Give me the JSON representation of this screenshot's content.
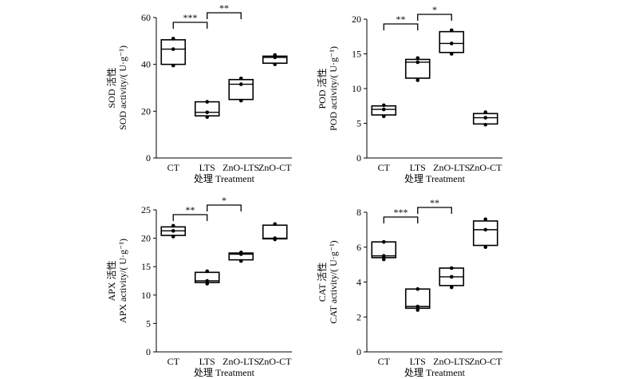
{
  "charts": [
    {
      "type": "boxplot",
      "xlabel": "处理 Treatment",
      "ylabel_cn": "SOD 活性",
      "ylabel_en": "SOD activity/( U·g⁻¹)",
      "categories": [
        "CT",
        "LTS",
        "ZnO-LTS",
        "ZnO-CT"
      ],
      "ylim": [
        0,
        60
      ],
      "yticks": [
        0,
        20,
        40,
        60
      ],
      "boxes": [
        {
          "min": 39.5,
          "q1": 40,
          "median": 46.5,
          "q3": 50.5,
          "max": 51,
          "points": [
            39.5,
            46.5,
            51
          ]
        },
        {
          "min": 17.5,
          "q1": 18,
          "median": 19.5,
          "q3": 24,
          "max": 24,
          "points": [
            17.5,
            19.5,
            24
          ]
        },
        {
          "min": 24.5,
          "q1": 25,
          "median": 31.5,
          "q3": 33.5,
          "max": 34,
          "points": [
            24.5,
            31.5,
            34
          ]
        },
        {
          "min": 40,
          "q1": 40.5,
          "median": 43,
          "q3": 43.5,
          "max": 44,
          "points": [
            40,
            43,
            44
          ]
        }
      ],
      "significance": [
        {
          "from": 0,
          "to": 1,
          "label": "***"
        },
        {
          "from": 1,
          "to": 2,
          "label": "**"
        }
      ]
    },
    {
      "type": "boxplot",
      "xlabel": "处理 Treatment",
      "ylabel_cn": "POD 活性",
      "ylabel_en": "POD activity/( U·g⁻¹)",
      "categories": [
        "CT",
        "LTS",
        "ZnO-LTS",
        "ZnO-CT"
      ],
      "ylim": [
        0,
        20
      ],
      "yticks": [
        0,
        5,
        10,
        15,
        20
      ],
      "boxes": [
        {
          "min": 6,
          "q1": 6.2,
          "median": 7,
          "q3": 7.5,
          "max": 7.6,
          "points": [
            6,
            7,
            7.6
          ]
        },
        {
          "min": 11.2,
          "q1": 11.5,
          "median": 13.8,
          "q3": 14.2,
          "max": 14.4,
          "points": [
            11.2,
            13.8,
            14.4
          ]
        },
        {
          "min": 15,
          "q1": 15.2,
          "median": 16.5,
          "q3": 18.2,
          "max": 18.4,
          "points": [
            15,
            16.5,
            18.4
          ]
        },
        {
          "min": 4.8,
          "q1": 4.9,
          "median": 5.8,
          "q3": 6.4,
          "max": 6.6,
          "points": [
            4.8,
            5.8,
            6.6
          ]
        }
      ],
      "significance": [
        {
          "from": 0,
          "to": 1,
          "label": "**"
        },
        {
          "from": 1,
          "to": 2,
          "label": "*"
        }
      ]
    },
    {
      "type": "boxplot",
      "xlabel": "处理 Treatment",
      "ylabel_cn": "APX 活性",
      "ylabel_en": "APX activity/( U·g⁻¹)",
      "categories": [
        "CT",
        "LTS",
        "ZnO-LTS",
        "ZnO-CT"
      ],
      "ylim": [
        0,
        25
      ],
      "yticks": [
        0,
        5,
        10,
        15,
        20,
        25
      ],
      "boxes": [
        {
          "min": 20.3,
          "q1": 20.5,
          "median": 21.3,
          "q3": 22,
          "max": 22.2,
          "points": [
            20.3,
            21.3,
            22.2
          ]
        },
        {
          "min": 12,
          "q1": 12.2,
          "median": 12.5,
          "q3": 14,
          "max": 14.2,
          "points": [
            12,
            12.5,
            14.2
          ]
        },
        {
          "min": 16,
          "q1": 16.2,
          "median": 17.2,
          "q3": 17.4,
          "max": 17.5,
          "points": [
            16,
            17.2,
            17.5
          ]
        },
        {
          "min": 19.8,
          "q1": 19.9,
          "median": 20,
          "q3": 22.3,
          "max": 22.5,
          "points": [
            19.8,
            20,
            22.5
          ]
        }
      ],
      "significance": [
        {
          "from": 0,
          "to": 1,
          "label": "**"
        },
        {
          "from": 1,
          "to": 2,
          "label": "*"
        }
      ]
    },
    {
      "type": "boxplot",
      "xlabel": "处理 Treatment",
      "ylabel_cn": "CAT 活性",
      "ylabel_en": "CAT activity/( U·g⁻¹)",
      "categories": [
        "CT",
        "LTS",
        "ZnO-LTS",
        "ZnO-CT"
      ],
      "ylim": [
        0,
        8
      ],
      "yticks": [
        0,
        2,
        4,
        6,
        8
      ],
      "boxes": [
        {
          "min": 5.3,
          "q1": 5.4,
          "median": 5.5,
          "q3": 6.3,
          "max": 6.3,
          "points": [
            5.3,
            5.5,
            6.3
          ]
        },
        {
          "min": 2.4,
          "q1": 2.5,
          "median": 2.6,
          "q3": 3.6,
          "max": 3.6,
          "points": [
            2.4,
            2.6,
            3.6
          ]
        },
        {
          "min": 3.7,
          "q1": 3.8,
          "median": 4.3,
          "q3": 4.8,
          "max": 4.8,
          "points": [
            3.7,
            4.3,
            4.8
          ]
        },
        {
          "min": 6,
          "q1": 6.1,
          "median": 7,
          "q3": 7.5,
          "max": 7.6,
          "points": [
            6,
            7,
            7.6
          ]
        }
      ],
      "significance": [
        {
          "from": 0,
          "to": 1,
          "label": "***"
        },
        {
          "from": 1,
          "to": 2,
          "label": "**"
        }
      ]
    }
  ]
}
